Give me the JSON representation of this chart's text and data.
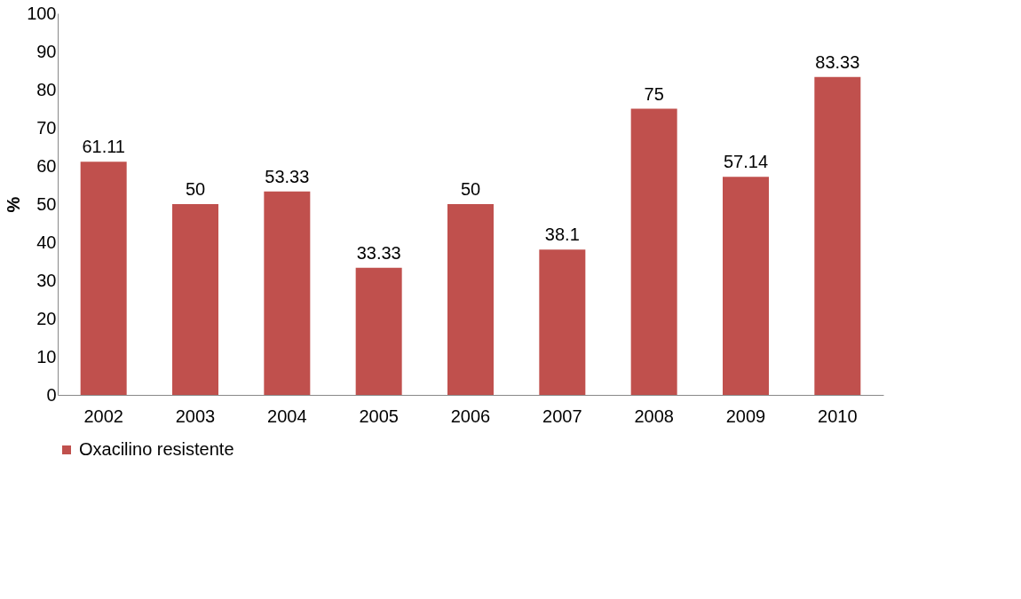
{
  "chart_data": {
    "type": "bar",
    "ylabel": "%",
    "categories": [
      "2002",
      "2003",
      "2004",
      "2005",
      "2006",
      "2007",
      "2008",
      "2009",
      "2010"
    ],
    "series": [
      {
        "name": "Oxacilino resistente",
        "color": "#c0504d",
        "values": [
          61.11,
          50,
          53.33,
          33.33,
          50,
          38.1,
          75,
          57.14,
          83.33
        ]
      }
    ],
    "ylim": [
      0,
      100
    ],
    "yticks": [
      0,
      10,
      20,
      30,
      40,
      50,
      60,
      70,
      80,
      90,
      100
    ],
    "data_labels": true,
    "legend": "bottom",
    "grid": false
  }
}
